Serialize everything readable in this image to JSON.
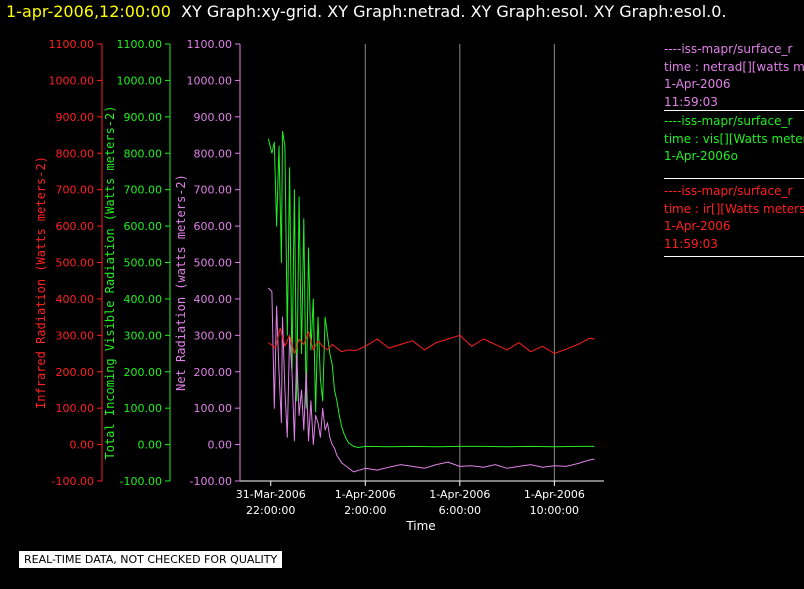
{
  "header": {
    "timestamp": "1-apr-2006,12:00:00",
    "graphs": "XY Graph:xy-grid.  XY Graph:netrad.  XY Graph:esol.  XY Graph:esol.0."
  },
  "colors": {
    "infrared": "#ff2020",
    "visible": "#22ee22",
    "net": "#e080e8",
    "axis": "#ffffff",
    "grid": "#8a8a8a"
  },
  "legend": [
    {
      "lines": [
        "----iss-mapr/surface_r",
        "time : netrad[][watts m",
        "1-Apr-2006",
        "11:59:03"
      ],
      "color": "#e080e8"
    },
    {
      "lines": [
        "----iss-mapr/surface_r",
        "time : vis[][Watts meter",
        "1-Apr-2006o"
      ],
      "color": "#22ee22"
    },
    {
      "lines": [
        "----iss-mapr/surface_r",
        "time : ir[][Watts meters",
        "1-Apr-2006",
        "11:59:03"
      ],
      "color": "#ff2020"
    }
  ],
  "note": "REAL-TIME DATA, NOT CHECKED FOR QUALITY",
  "chart_data": {
    "type": "line",
    "xlabel": "Time",
    "x_ticks": [
      {
        "line1": "31-Mar-2006",
        "line2": "22:00:00",
        "hour": 0
      },
      {
        "line1": "1-Apr-2006",
        "line2": "2:00:00",
        "hour": 4
      },
      {
        "line1": "1-Apr-2006",
        "line2": "6:00:00",
        "hour": 8
      },
      {
        "line1": "1-Apr-2006",
        "line2": "10:00:00",
        "hour": 12
      }
    ],
    "x_unit": "hours since 31-Mar-2006 22:00:00",
    "xlim": [
      -1.3,
      14.1
    ],
    "ylim": [
      -100,
      1100
    ],
    "y_ticks": [
      -100,
      0,
      100,
      200,
      300,
      400,
      500,
      600,
      700,
      800,
      900,
      1000,
      1100
    ],
    "y_axes": [
      {
        "label": "Infrared Radiation (Watts meters-2)",
        "color": "#ff2020",
        "tick_labels": [
          "-100.00",
          "0.00",
          "100.00",
          "200.00",
          "300.00",
          "400.00",
          "500.00",
          "600.00",
          "700.00",
          "800.00",
          "900.00",
          "1000.00",
          "1100.00"
        ]
      },
      {
        "label": "Total Incoming Visible Radiation (Watts meters-2)",
        "color": "#22ee22",
        "tick_labels": [
          "-100.00",
          "0.00",
          "100.00",
          "200.00",
          "300.00",
          "400.00",
          "500.00",
          "600.00",
          "700.00",
          "800.00",
          "900.00",
          "1000.00",
          "1100.00"
        ]
      },
      {
        "label": "Net Radiation (watts meters-2)",
        "color": "#e080e8",
        "tick_labels": [
          "-100.00",
          "0.00",
          "100.00",
          "200.00",
          "300.00",
          "400.00",
          "500.00",
          "600.00",
          "700.00",
          "800.00",
          "900.00",
          "1000.00",
          "1100.00"
        ]
      }
    ],
    "series": [
      {
        "name": "vis",
        "color": "#22ee22",
        "x": [
          -0.1,
          0.05,
          0.15,
          0.25,
          0.35,
          0.45,
          0.5,
          0.6,
          0.7,
          0.8,
          0.9,
          1.0,
          1.1,
          1.2,
          1.3,
          1.4,
          1.5,
          1.6,
          1.7,
          1.8,
          1.9,
          2.0,
          2.1,
          2.2,
          2.3,
          2.4,
          2.5,
          2.6,
          2.7,
          2.8,
          2.9,
          3.0,
          3.1,
          3.2,
          3.3,
          3.5,
          3.7,
          4.0,
          5.0,
          6.0,
          7.0,
          8.0,
          9.0,
          10.0,
          11.0,
          12.0,
          13.0,
          13.7
        ],
        "y": [
          840,
          800,
          830,
          600,
          820,
          500,
          860,
          820,
          300,
          760,
          200,
          700,
          120,
          680,
          250,
          620,
          100,
          540,
          260,
          400,
          90,
          350,
          180,
          120,
          350,
          300,
          250,
          220,
          150,
          120,
          80,
          50,
          30,
          15,
          5,
          -5,
          -8,
          -5,
          -6,
          -5,
          -6,
          -5,
          -5,
          -6,
          -5,
          -6,
          -5,
          -5
        ]
      },
      {
        "name": "netrad",
        "color": "#e080e8",
        "x": [
          -0.1,
          0.05,
          0.15,
          0.25,
          0.35,
          0.45,
          0.5,
          0.6,
          0.7,
          0.8,
          0.9,
          1.0,
          1.1,
          1.2,
          1.3,
          1.4,
          1.5,
          1.6,
          1.7,
          1.8,
          1.9,
          2.0,
          2.1,
          2.2,
          2.3,
          2.4,
          2.5,
          2.6,
          2.7,
          2.8,
          2.9,
          3.0,
          3.1,
          3.2,
          3.5,
          4.0,
          4.5,
          5.0,
          5.5,
          6.0,
          6.5,
          7.0,
          7.5,
          8.0,
          8.5,
          9.0,
          9.5,
          10.0,
          10.5,
          11.0,
          11.5,
          12.0,
          12.5,
          13.0,
          13.5,
          13.7
        ],
        "y": [
          430,
          420,
          100,
          380,
          200,
          60,
          350,
          150,
          20,
          300,
          200,
          10,
          250,
          80,
          150,
          40,
          200,
          10,
          120,
          0,
          80,
          60,
          20,
          100,
          40,
          60,
          20,
          0,
          -10,
          -30,
          -40,
          -50,
          -55,
          -60,
          -75,
          -65,
          -70,
          -62,
          -55,
          -60,
          -65,
          -55,
          -48,
          -60,
          -58,
          -62,
          -55,
          -65,
          -60,
          -55,
          -62,
          -58,
          -60,
          -52,
          -42,
          -40
        ]
      },
      {
        "name": "ir",
        "color": "#ff2020",
        "x": [
          -0.1,
          0.2,
          0.4,
          0.6,
          0.8,
          1.0,
          1.2,
          1.4,
          1.6,
          1.8,
          2.0,
          2.2,
          2.4,
          2.6,
          2.8,
          3.0,
          3.3,
          3.6,
          4.0,
          4.5,
          5.0,
          5.5,
          6.0,
          6.5,
          7.0,
          7.5,
          8.0,
          8.5,
          9.0,
          9.5,
          10.0,
          10.5,
          11.0,
          11.5,
          12.0,
          12.5,
          13.0,
          13.5,
          13.7
        ],
        "y": [
          280,
          265,
          320,
          270,
          300,
          250,
          290,
          275,
          310,
          260,
          285,
          270,
          260,
          275,
          265,
          255,
          260,
          258,
          270,
          290,
          265,
          275,
          285,
          260,
          280,
          290,
          300,
          270,
          290,
          275,
          260,
          280,
          255,
          270,
          250,
          262,
          275,
          292,
          290
        ]
      }
    ]
  }
}
